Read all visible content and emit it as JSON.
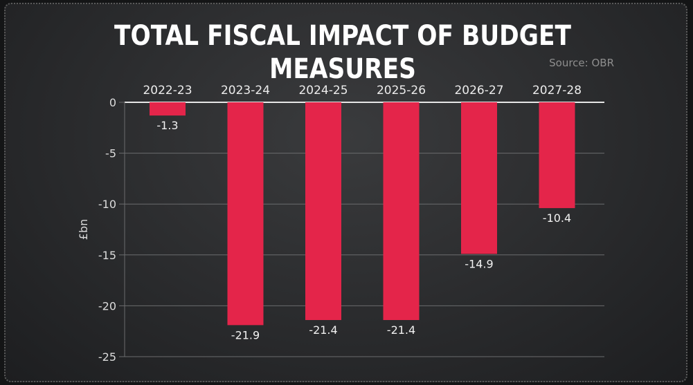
{
  "chart_data": {
    "type": "bar",
    "title": "TOTAL FISCAL IMPACT OF BUDGET MEASURES",
    "source": "Source: OBR",
    "xlabel": "",
    "ylabel": "£bn",
    "categories": [
      "2022-23",
      "2023-24",
      "2024-25",
      "2025-26",
      "2026-27",
      "2027-28"
    ],
    "values": [
      -1.3,
      -21.9,
      -21.4,
      -21.4,
      -14.9,
      -10.4
    ],
    "value_labels": [
      "-1.3",
      "-21.9",
      "-21.4",
      "-21.4",
      "-14.9",
      "-10.4"
    ],
    "ylim": [
      -25,
      0
    ],
    "yticks": [
      0,
      -5,
      -10,
      -15,
      -20,
      -25
    ],
    "ytick_labels": [
      "0",
      "-5",
      "-10",
      "-15",
      "-20",
      "-25"
    ],
    "grid": true,
    "bar_color": "#e4254a",
    "gridline_color": "#6b6c6e",
    "zero_line_color": "#e6e6e6"
  }
}
